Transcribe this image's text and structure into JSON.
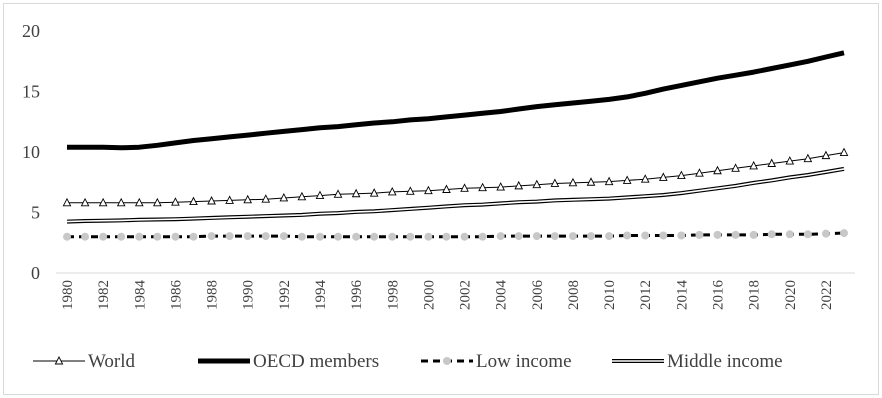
{
  "chart_data": {
    "type": "line",
    "title": "",
    "xlabel": "",
    "ylabel": "",
    "ylim": [
      0,
      20
    ],
    "yticks": [
      "0",
      "5",
      "10",
      "15",
      "20"
    ],
    "x": [
      1980,
      1981,
      1982,
      1983,
      1984,
      1985,
      1986,
      1987,
      1988,
      1989,
      1990,
      1991,
      1992,
      1993,
      1994,
      1995,
      1996,
      1997,
      1998,
      1999,
      2000,
      2001,
      2002,
      2003,
      2004,
      2005,
      2006,
      2007,
      2008,
      2009,
      2010,
      2011,
      2012,
      2013,
      2014,
      2015,
      2016,
      2017,
      2018,
      2019,
      2020,
      2021,
      2022,
      2023
    ],
    "xticks": [
      "1980",
      "1982",
      "1984",
      "1986",
      "1988",
      "1990",
      "1992",
      "1994",
      "1996",
      "1998",
      "2000",
      "2002",
      "2004",
      "2006",
      "2008",
      "2010",
      "2012",
      "2014",
      "2016",
      "2018",
      "2020",
      "2022"
    ],
    "grid": false,
    "legend_position": "bottom",
    "series": [
      {
        "name": "World",
        "style": "thin-line-triangle",
        "values": [
          5.8,
          5.8,
          5.8,
          5.8,
          5.8,
          5.8,
          5.85,
          5.9,
          5.95,
          6.0,
          6.05,
          6.1,
          6.2,
          6.3,
          6.4,
          6.5,
          6.55,
          6.6,
          6.7,
          6.75,
          6.8,
          6.9,
          7.0,
          7.05,
          7.1,
          7.2,
          7.3,
          7.4,
          7.45,
          7.5,
          7.55,
          7.65,
          7.75,
          7.9,
          8.05,
          8.25,
          8.45,
          8.65,
          8.85,
          9.05,
          9.25,
          9.45,
          9.7,
          9.95
        ]
      },
      {
        "name": "OECD members",
        "style": "thick-line",
        "values": [
          10.4,
          10.4,
          10.4,
          10.35,
          10.4,
          10.55,
          10.75,
          10.95,
          11.1,
          11.25,
          11.4,
          11.55,
          11.7,
          11.85,
          12.0,
          12.1,
          12.25,
          12.4,
          12.5,
          12.65,
          12.75,
          12.9,
          13.05,
          13.2,
          13.35,
          13.55,
          13.75,
          13.9,
          14.05,
          14.2,
          14.35,
          14.55,
          14.85,
          15.2,
          15.5,
          15.8,
          16.1,
          16.35,
          16.6,
          16.9,
          17.2,
          17.5,
          17.85,
          18.2
        ]
      },
      {
        "name": "Low income",
        "style": "dashed-circle",
        "values": [
          3.0,
          3.0,
          3.0,
          3.0,
          3.0,
          3.0,
          3.0,
          3.0,
          3.05,
          3.05,
          3.05,
          3.05,
          3.05,
          3.0,
          3.0,
          3.0,
          3.0,
          3.0,
          3.0,
          3.0,
          3.0,
          3.0,
          3.0,
          3.0,
          3.05,
          3.05,
          3.05,
          3.05,
          3.05,
          3.05,
          3.05,
          3.1,
          3.1,
          3.1,
          3.1,
          3.15,
          3.15,
          3.15,
          3.15,
          3.2,
          3.2,
          3.2,
          3.25,
          3.3
        ]
      },
      {
        "name": "Middle income",
        "style": "double-line",
        "values": [
          4.25,
          4.3,
          4.32,
          4.35,
          4.4,
          4.42,
          4.45,
          4.5,
          4.55,
          4.6,
          4.65,
          4.7,
          4.75,
          4.8,
          4.9,
          4.95,
          5.05,
          5.1,
          5.2,
          5.3,
          5.4,
          5.5,
          5.6,
          5.65,
          5.75,
          5.85,
          5.9,
          6.0,
          6.05,
          6.1,
          6.15,
          6.25,
          6.35,
          6.45,
          6.6,
          6.8,
          7.0,
          7.2,
          7.45,
          7.65,
          7.9,
          8.1,
          8.35,
          8.6
        ]
      }
    ]
  }
}
